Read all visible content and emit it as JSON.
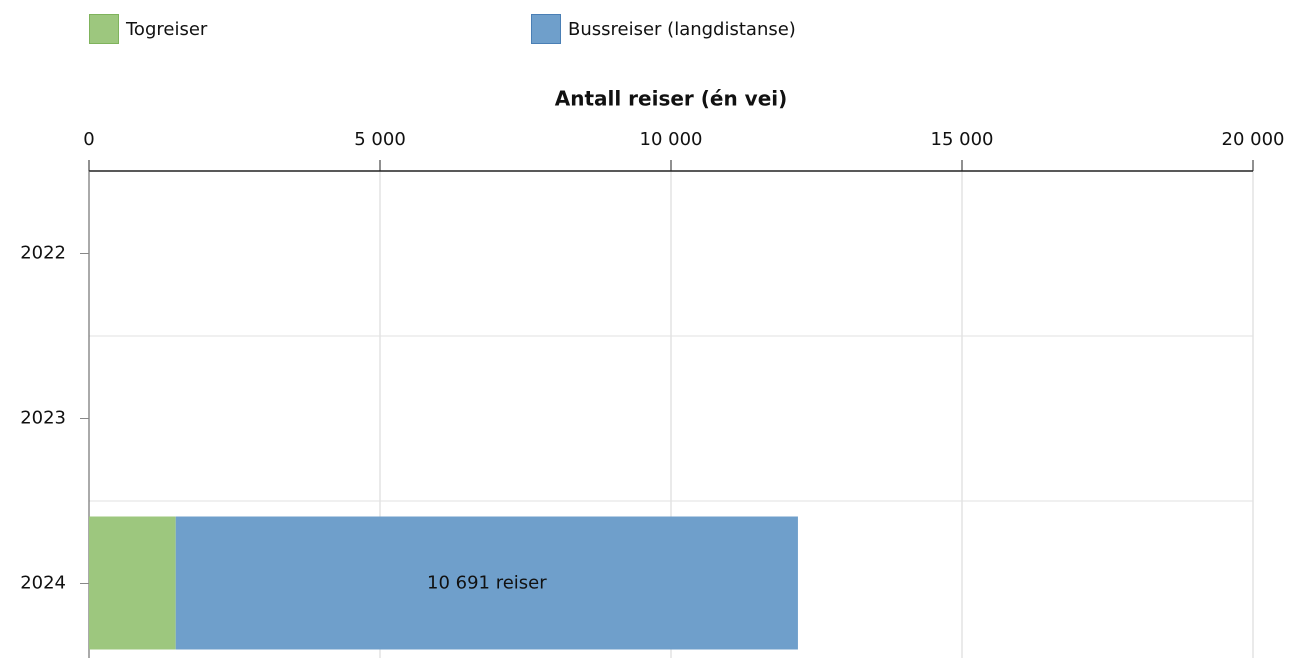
{
  "chart_data": {
    "type": "bar",
    "orientation": "horizontal",
    "stacked": true,
    "x_label": "Antall reiser (én vei)",
    "categories": [
      "2022",
      "2023",
      "2024"
    ],
    "series": [
      {
        "name": "Togreiser",
        "color": "#9dc77e",
        "values": [
          null,
          null,
          1490
        ]
      },
      {
        "name": "Bussreiser (langdistanse)",
        "color": "#6f9fcb",
        "values": [
          null,
          null,
          10691
        ],
        "value_labels": [
          null,
          null,
          "10 691 reiser"
        ]
      }
    ],
    "xlim": [
      0,
      20000
    ],
    "xticks": [
      0,
      {
        "value": 5000,
        "label": "5 000"
      },
      {
        "value": 10000,
        "label": "10 000"
      },
      {
        "value": 15000,
        "label": "15 000"
      },
      {
        "value": 20000,
        "label": "20 000"
      }
    ],
    "grid": true,
    "legend": "top"
  }
}
